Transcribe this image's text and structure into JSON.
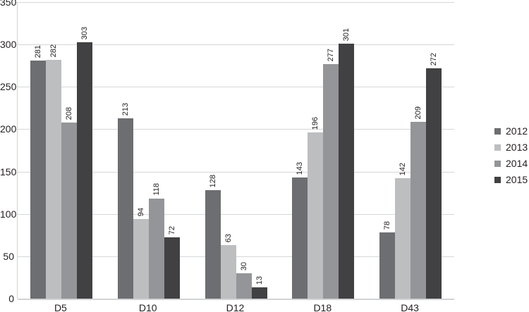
{
  "chart_data": {
    "type": "bar",
    "title": "",
    "xlabel": "",
    "ylabel": "",
    "categories": [
      "D5",
      "D10",
      "D12",
      "D18",
      "D43"
    ],
    "series": [
      {
        "name": "2012",
        "color": "#6d6e71",
        "values": [
          281,
          213,
          128,
          143,
          78
        ]
      },
      {
        "name": "2013",
        "color": "#bcbec0",
        "values": [
          282,
          94,
          63,
          196,
          142
        ]
      },
      {
        "name": "2014",
        "color": "#939598",
        "values": [
          208,
          118,
          30,
          277,
          209
        ]
      },
      {
        "name": "2015",
        "color": "#414042",
        "values": [
          303,
          72,
          13,
          301,
          272
        ]
      }
    ],
    "ylim": [
      0,
      350
    ],
    "yticks": [
      0,
      50,
      100,
      150,
      200,
      250,
      300,
      350
    ],
    "grid": true,
    "legend_position": "right",
    "grid_color": "#d6d7d8",
    "axis_color": "#d1d3d4",
    "text_color": "#231f20",
    "background_color": "#ffffff",
    "bar_value_labels_rotated": true
  }
}
